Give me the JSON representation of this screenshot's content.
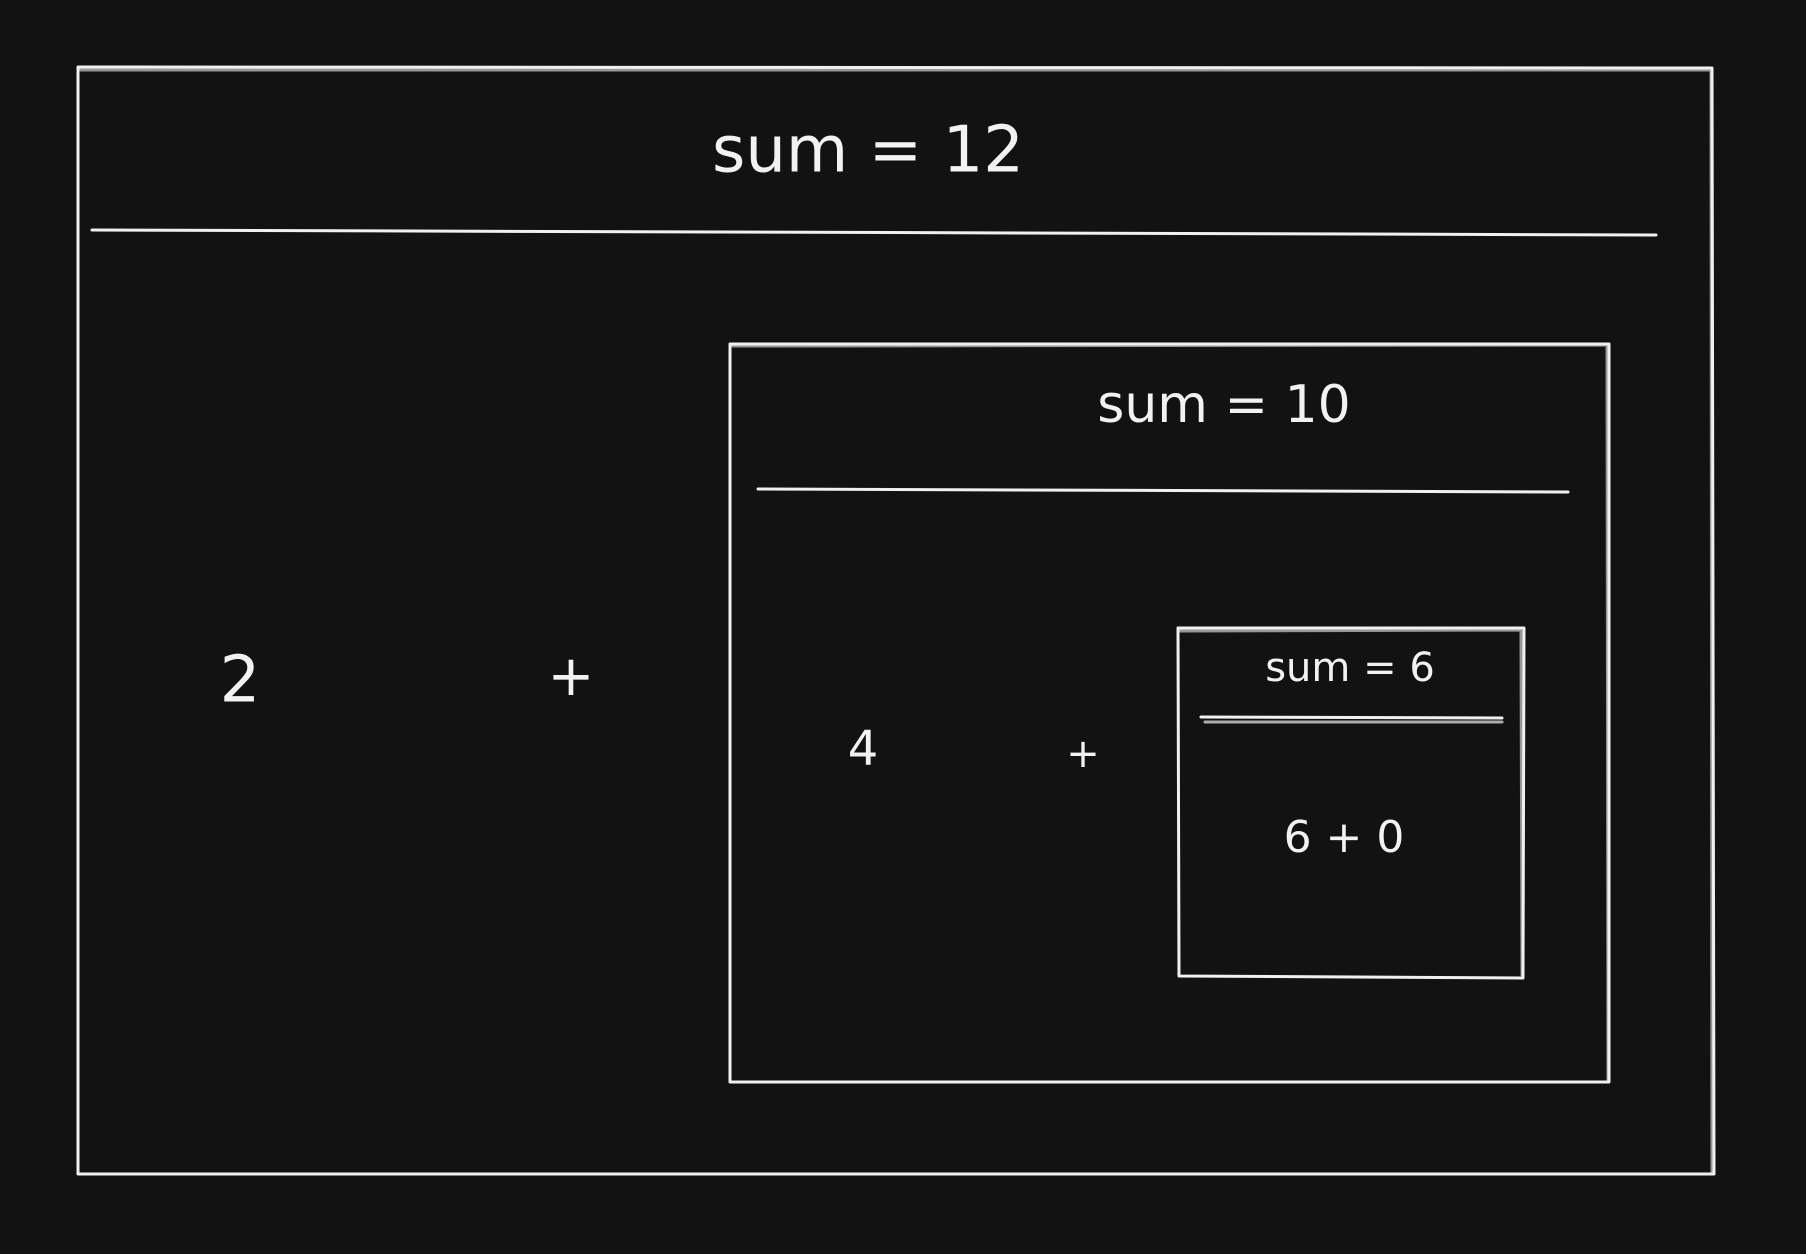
{
  "outer": {
    "header": "sum = 12",
    "left_operand": "2",
    "operator": "+"
  },
  "middle": {
    "header": "sum = 10",
    "left_operand": "4",
    "operator": "+"
  },
  "inner": {
    "header": "sum = 6",
    "body": "6 + 0"
  }
}
